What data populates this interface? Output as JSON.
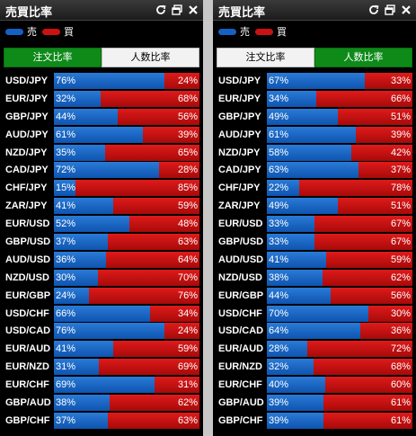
{
  "colors": {
    "sell": "#1560c4",
    "buy": "#cc1111",
    "active_tab": "#0e8a19"
  },
  "panels": [
    {
      "title": "売買比率",
      "legend": {
        "sell_label": "売",
        "buy_label": "買"
      },
      "tabs": [
        {
          "label": "注文比率",
          "active": true
        },
        {
          "label": "人数比率",
          "active": false
        }
      ],
      "rows": [
        {
          "pair": "USD/JPY",
          "sell": 76,
          "buy": 24,
          "sell_label": "76%",
          "buy_label": "24%"
        },
        {
          "pair": "EUR/JPY",
          "sell": 32,
          "buy": 68,
          "sell_label": "32%",
          "buy_label": "68%"
        },
        {
          "pair": "GBP/JPY",
          "sell": 44,
          "buy": 56,
          "sell_label": "44%",
          "buy_label": "56%"
        },
        {
          "pair": "AUD/JPY",
          "sell": 61,
          "buy": 39,
          "sell_label": "61%",
          "buy_label": "39%"
        },
        {
          "pair": "NZD/JPY",
          "sell": 35,
          "buy": 65,
          "sell_label": "35%",
          "buy_label": "65%"
        },
        {
          "pair": "CAD/JPY",
          "sell": 72,
          "buy": 28,
          "sell_label": "72%",
          "buy_label": "28%"
        },
        {
          "pair": "CHF/JPY",
          "sell": 15,
          "buy": 85,
          "sell_label": "15%",
          "buy_label": "85%"
        },
        {
          "pair": "ZAR/JPY",
          "sell": 41,
          "buy": 59,
          "sell_label": "41%",
          "buy_label": "59%"
        },
        {
          "pair": "EUR/USD",
          "sell": 52,
          "buy": 48,
          "sell_label": "52%",
          "buy_label": "48%"
        },
        {
          "pair": "GBP/USD",
          "sell": 37,
          "buy": 63,
          "sell_label": "37%",
          "buy_label": "63%"
        },
        {
          "pair": "AUD/USD",
          "sell": 36,
          "buy": 64,
          "sell_label": "36%",
          "buy_label": "64%"
        },
        {
          "pair": "NZD/USD",
          "sell": 30,
          "buy": 70,
          "sell_label": "30%",
          "buy_label": "70%"
        },
        {
          "pair": "EUR/GBP",
          "sell": 24,
          "buy": 76,
          "sell_label": "24%",
          "buy_label": "76%"
        },
        {
          "pair": "USD/CHF",
          "sell": 66,
          "buy": 34,
          "sell_label": "66%",
          "buy_label": "34%"
        },
        {
          "pair": "USD/CAD",
          "sell": 76,
          "buy": 24,
          "sell_label": "76%",
          "buy_label": "24%"
        },
        {
          "pair": "EUR/AUD",
          "sell": 41,
          "buy": 59,
          "sell_label": "41%",
          "buy_label": "59%"
        },
        {
          "pair": "EUR/NZD",
          "sell": 31,
          "buy": 69,
          "sell_label": "31%",
          "buy_label": "69%"
        },
        {
          "pair": "EUR/CHF",
          "sell": 69,
          "buy": 31,
          "sell_label": "69%",
          "buy_label": "31%"
        },
        {
          "pair": "GBP/AUD",
          "sell": 38,
          "buy": 62,
          "sell_label": "38%",
          "buy_label": "62%"
        },
        {
          "pair": "GBP/CHF",
          "sell": 37,
          "buy": 63,
          "sell_label": "37%",
          "buy_label": "63%"
        }
      ]
    },
    {
      "title": "売買比率",
      "legend": {
        "sell_label": "売",
        "buy_label": "買"
      },
      "tabs": [
        {
          "label": "注文比率",
          "active": false
        },
        {
          "label": "人数比率",
          "active": true
        }
      ],
      "rows": [
        {
          "pair": "USD/JPY",
          "sell": 67,
          "buy": 33,
          "sell_label": "67%",
          "buy_label": "33%"
        },
        {
          "pair": "EUR/JPY",
          "sell": 34,
          "buy": 66,
          "sell_label": "34%",
          "buy_label": "66%"
        },
        {
          "pair": "GBP/JPY",
          "sell": 49,
          "buy": 51,
          "sell_label": "49%",
          "buy_label": "51%"
        },
        {
          "pair": "AUD/JPY",
          "sell": 61,
          "buy": 39,
          "sell_label": "61%",
          "buy_label": "39%"
        },
        {
          "pair": "NZD/JPY",
          "sell": 58,
          "buy": 42,
          "sell_label": "58%",
          "buy_label": "42%"
        },
        {
          "pair": "CAD/JPY",
          "sell": 63,
          "buy": 37,
          "sell_label": "63%",
          "buy_label": "37%"
        },
        {
          "pair": "CHF/JPY",
          "sell": 22,
          "buy": 78,
          "sell_label": "22%",
          "buy_label": "78%"
        },
        {
          "pair": "ZAR/JPY",
          "sell": 49,
          "buy": 51,
          "sell_label": "49%",
          "buy_label": "51%"
        },
        {
          "pair": "EUR/USD",
          "sell": 33,
          "buy": 67,
          "sell_label": "33%",
          "buy_label": "67%"
        },
        {
          "pair": "GBP/USD",
          "sell": 33,
          "buy": 67,
          "sell_label": "33%",
          "buy_label": "67%"
        },
        {
          "pair": "AUD/USD",
          "sell": 41,
          "buy": 59,
          "sell_label": "41%",
          "buy_label": "59%"
        },
        {
          "pair": "NZD/USD",
          "sell": 38,
          "buy": 62,
          "sell_label": "38%",
          "buy_label": "62%"
        },
        {
          "pair": "EUR/GBP",
          "sell": 44,
          "buy": 56,
          "sell_label": "44%",
          "buy_label": "56%"
        },
        {
          "pair": "USD/CHF",
          "sell": 70,
          "buy": 30,
          "sell_label": "70%",
          "buy_label": "30%"
        },
        {
          "pair": "USD/CAD",
          "sell": 64,
          "buy": 36,
          "sell_label": "64%",
          "buy_label": "36%"
        },
        {
          "pair": "EUR/AUD",
          "sell": 28,
          "buy": 72,
          "sell_label": "28%",
          "buy_label": "72%"
        },
        {
          "pair": "EUR/NZD",
          "sell": 32,
          "buy": 68,
          "sell_label": "32%",
          "buy_label": "68%"
        },
        {
          "pair": "EUR/CHF",
          "sell": 40,
          "buy": 60,
          "sell_label": "40%",
          "buy_label": "60%"
        },
        {
          "pair": "GBP/AUD",
          "sell": 39,
          "buy": 61,
          "sell_label": "39%",
          "buy_label": "61%"
        },
        {
          "pair": "GBP/CHF",
          "sell": 39,
          "buy": 61,
          "sell_label": "39%",
          "buy_label": "61%"
        }
      ]
    }
  ]
}
